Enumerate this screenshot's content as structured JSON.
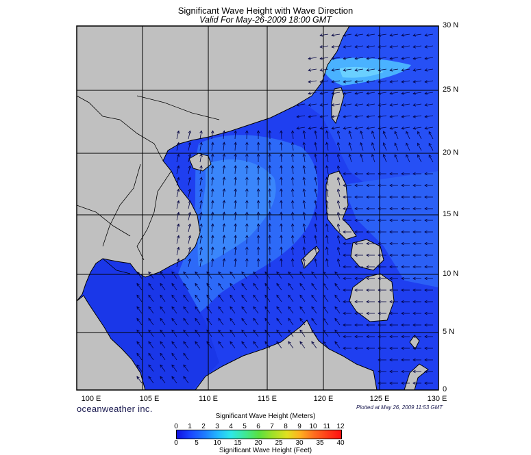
{
  "title": "Significant Wave Height with Wave Direction",
  "subtitle": "Valid For May-26-2009 18:00 GMT",
  "lon_labels": [
    "100 E",
    "105 E",
    "110 E",
    "115 E",
    "120 E",
    "125 E",
    "130 E"
  ],
  "lat_labels": [
    "30 N",
    "25 N",
    "20 N",
    "15 N",
    "10 N",
    "5 N",
    "0"
  ],
  "brand": "oceanweather inc.",
  "plotted": "Plotted at May 26, 2009 11:53 GMT",
  "legend": {
    "title_meters": "Significant Wave Height (Meters)",
    "title_feet": "Significant Wave Height (Feet)",
    "ticks_meters": [
      "0",
      "1",
      "2",
      "3",
      "4",
      "5",
      "6",
      "7",
      "8",
      "9",
      "10",
      "11",
      "12"
    ],
    "ticks_feet": [
      "0",
      "5",
      "10",
      "15",
      "20",
      "25",
      "30",
      "35",
      "40"
    ],
    "range_meters": [
      0,
      12
    ],
    "range_feet": [
      0,
      40
    ]
  },
  "colors": {
    "land": "#c0c0c0",
    "ocean_deep": "#1f3ff0",
    "ocean_mid": "#2a6ef7",
    "ocean_light": "#4ab2ff",
    "arrow": "#000040"
  }
}
